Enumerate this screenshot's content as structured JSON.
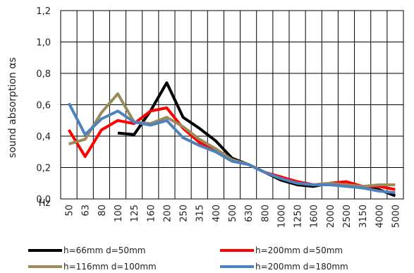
{
  "chart_data": {
    "type": "line",
    "title": "",
    "xlabel": "Hz",
    "ylabel": "sound absorption αs",
    "categories": [
      "50",
      "63",
      "80",
      "100",
      "125",
      "160",
      "200",
      "250",
      "315",
      "400",
      "500",
      "630",
      "800",
      "1000",
      "1250",
      "1600",
      "2000",
      "2500",
      "3150",
      "4000",
      "5000"
    ],
    "ylim": [
      0,
      1.2
    ],
    "yticks": [
      "0,0",
      "0,2",
      "0,4",
      "0,6",
      "0,8",
      "1,0",
      "1,2"
    ],
    "grid": true,
    "legend_position": "bottom",
    "series": [
      {
        "name": "h=66mm d=50mm",
        "color": "#000000",
        "values": [
          null,
          null,
          null,
          0.42,
          0.41,
          0.56,
          0.74,
          0.52,
          0.45,
          0.37,
          0.26,
          0.22,
          0.17,
          0.12,
          0.09,
          0.08,
          0.1,
          0.09,
          0.07,
          0.06,
          0.02
        ]
      },
      {
        "name": "h=200mm d=50mm",
        "color": "#ff0000",
        "values": [
          0.44,
          0.27,
          0.44,
          0.5,
          0.48,
          0.56,
          0.58,
          0.45,
          0.36,
          0.31,
          0.25,
          0.22,
          0.17,
          0.14,
          0.11,
          0.09,
          0.1,
          0.11,
          0.08,
          0.08,
          0.06
        ]
      },
      {
        "name": "h=116mm d=100mm",
        "color": "#9a8a5c",
        "values": [
          0.35,
          0.38,
          0.55,
          0.67,
          0.49,
          0.48,
          0.52,
          0.46,
          0.38,
          0.32,
          0.25,
          0.22,
          0.17,
          0.13,
          0.1,
          0.09,
          0.1,
          0.09,
          0.08,
          0.09,
          0.09
        ]
      },
      {
        "name": "h=200mm d=180mm",
        "color": "#4f81bd",
        "values": [
          0.61,
          0.41,
          0.51,
          0.56,
          0.49,
          0.47,
          0.5,
          0.39,
          0.34,
          0.3,
          0.24,
          0.22,
          0.17,
          0.13,
          0.1,
          0.09,
          0.09,
          0.08,
          0.07,
          0.05,
          0.04
        ]
      }
    ]
  }
}
